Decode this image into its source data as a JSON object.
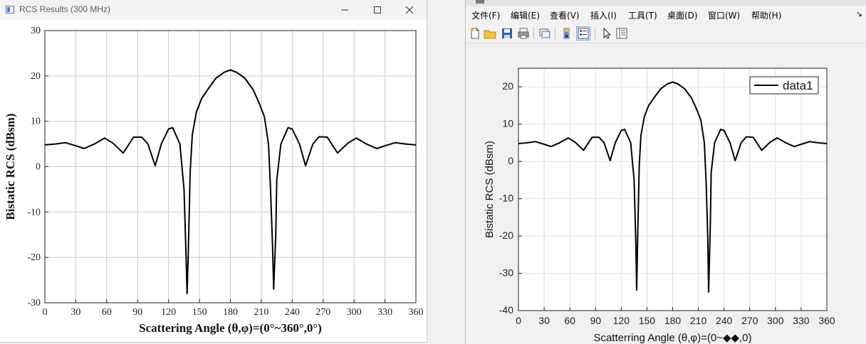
{
  "left_window": {
    "title": "RCS Results (300 MHz)",
    "controls": {
      "minimize": "minimize",
      "maximize": "maximize",
      "close": "close"
    }
  },
  "right_window": {
    "menu": [
      "文件(F)",
      "编辑(E)",
      "查看(V)",
      "插入(I)",
      "工具(T)",
      "桌面(D)",
      "窗口(W)",
      "帮助(H)"
    ],
    "toolbar_icons": [
      "new-file-icon",
      "open-folder-icon",
      "save-icon",
      "print-icon",
      "link-plot-icon",
      "colorbar-icon",
      "legend-icon",
      "pointer-icon",
      "property-inspector-icon"
    ]
  },
  "chart_data": [
    {
      "type": "line",
      "xlabel": "Scattering Angle (θ,φ)=(0°~360°,0°)",
      "ylabel": "Bistatic RCS (dBsm)",
      "xlim": [
        0,
        360
      ],
      "ylim": [
        -30,
        30
      ],
      "xticks": [
        0,
        30,
        60,
        90,
        120,
        150,
        180,
        210,
        240,
        270,
        300,
        330,
        360
      ],
      "yticks": [
        30,
        20,
        10,
        0,
        -10,
        -20,
        -30
      ],
      "grid": true,
      "legend": null,
      "series": [
        {
          "x": [
            0,
            10,
            20,
            30,
            38,
            48,
            58,
            66,
            76,
            86,
            94,
            100,
            107,
            113,
            120,
            124,
            131,
            135,
            137,
            138,
            139,
            141,
            143,
            147,
            152,
            158,
            166,
            174,
            180,
            186,
            194,
            202,
            208,
            213,
            217,
            219,
            221,
            222,
            224,
            225,
            229,
            236,
            240,
            247,
            253,
            260,
            266,
            274,
            284,
            294,
            302,
            312,
            322,
            330,
            340,
            350,
            360
          ],
          "y": [
            4.8,
            5.0,
            5.3,
            4.6,
            4.0,
            5.0,
            6.3,
            5.2,
            3.0,
            6.5,
            6.5,
            5.0,
            0.2,
            5.0,
            8.3,
            8.6,
            5.0,
            -5,
            -20,
            -28,
            -20,
            -1,
            7,
            12,
            15,
            17,
            19.5,
            20.8,
            21.3,
            20.8,
            19.5,
            17,
            14,
            11,
            5,
            -5,
            -18,
            -27,
            -15,
            -3,
            5,
            8.6,
            8.3,
            5,
            0.2,
            5,
            6.6,
            6.5,
            3.0,
            5.2,
            6.3,
            5.0,
            4.0,
            4.6,
            5.3,
            5.0,
            4.8
          ]
        }
      ]
    },
    {
      "type": "line",
      "xlabel": "Scatterring Angle (θ,φ)=(0~◆◆,0)",
      "ylabel": "Bistatic RCS (dBsm)",
      "xlim": [
        0,
        360
      ],
      "ylim": [
        -40,
        25
      ],
      "xticks": [
        0,
        30,
        60,
        90,
        120,
        150,
        180,
        210,
        240,
        270,
        300,
        330,
        360
      ],
      "yticks": [
        20,
        10,
        0,
        -10,
        -20,
        -30,
        -40
      ],
      "grid": true,
      "legend_position": "top-right",
      "series": [
        {
          "name": "data1",
          "x": [
            0,
            10,
            20,
            30,
            38,
            48,
            58,
            66,
            76,
            86,
            94,
            100,
            107,
            113,
            120,
            124,
            131,
            135,
            137,
            138,
            139,
            141,
            143,
            147,
            152,
            158,
            166,
            174,
            180,
            186,
            194,
            202,
            208,
            213,
            217,
            219,
            221,
            222,
            224,
            225,
            229,
            236,
            240,
            247,
            253,
            260,
            266,
            274,
            284,
            294,
            302,
            312,
            322,
            330,
            340,
            350,
            360
          ],
          "y": [
            4.8,
            5.0,
            5.3,
            4.6,
            4.0,
            5.0,
            6.3,
            5.2,
            3.0,
            6.5,
            6.5,
            5.0,
            0.2,
            5.0,
            8.3,
            8.6,
            5.0,
            -5,
            -22,
            -34.5,
            -22,
            -1,
            7,
            12,
            15,
            17,
            19.5,
            20.8,
            21.3,
            20.8,
            19.5,
            17,
            14,
            11,
            5,
            -5,
            -20,
            -35,
            -17,
            -3,
            5,
            8.6,
            8.3,
            5,
            0.2,
            5,
            6.6,
            6.5,
            3.0,
            5.2,
            6.3,
            5.0,
            4.0,
            4.6,
            5.3,
            5.0,
            4.8
          ]
        }
      ]
    }
  ]
}
